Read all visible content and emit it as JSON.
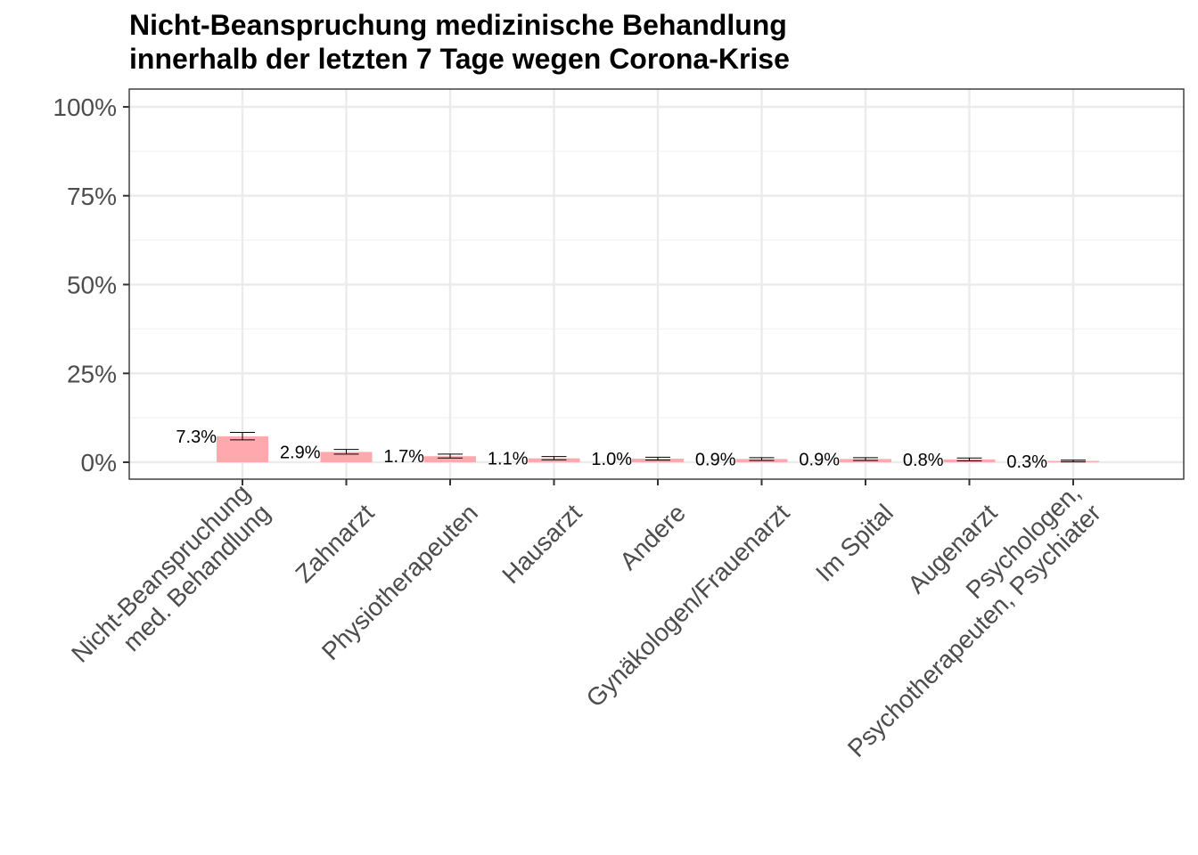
{
  "chart_data": {
    "type": "bar",
    "title": [
      "Nicht-Beanspruchung medizinische Behandlung",
      "innerhalb der letzten 7 Tage wegen Corona-Krise"
    ],
    "xlabel": "",
    "ylabel": "",
    "ylim": [
      0,
      100
    ],
    "yticks": [
      0,
      25,
      50,
      75,
      100
    ],
    "ytick_labels": [
      "0%",
      "25%",
      "50%",
      "75%",
      "100%"
    ],
    "bar_color": "#ffa9ae",
    "grid": true,
    "categories": [
      [
        "Nicht-Beanspruchung",
        "med. Behandlung"
      ],
      [
        "Zahnarzt"
      ],
      [
        "Physiotherapeuten"
      ],
      [
        "Hausarzt"
      ],
      [
        "Andere"
      ],
      [
        "Gynäkologen/Frauenarzt"
      ],
      [
        "Im Spital"
      ],
      [
        "Augenarzt"
      ],
      [
        "Psychologen,",
        "Psychotherapeuten, Psychiater"
      ]
    ],
    "values": [
      7.3,
      2.9,
      1.7,
      1.1,
      1.0,
      0.9,
      0.9,
      0.8,
      0.3
    ],
    "labels": [
      "7.3%",
      "2.9%",
      "1.7%",
      "1.1%",
      "1.0%",
      "0.9%",
      "0.9%",
      "0.8%",
      "0.3%"
    ],
    "ci_low": [
      6.3,
      2.3,
      1.2,
      0.7,
      0.6,
      0.5,
      0.5,
      0.4,
      0.1
    ],
    "ci_high": [
      8.4,
      3.6,
      2.3,
      1.6,
      1.4,
      1.3,
      1.3,
      1.2,
      0.6
    ]
  }
}
